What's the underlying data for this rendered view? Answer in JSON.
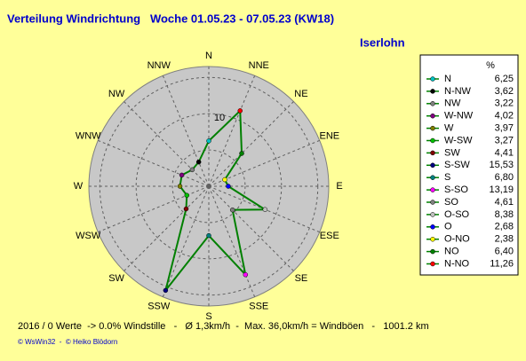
{
  "chart_data": {
    "type": "radar",
    "title": "Verteilung Windrichtung   Woche 01.05.23 - 07.05.23 (KW18)",
    "subtitle": "Iserlohn",
    "directions": [
      "N",
      "NNE",
      "NE",
      "ENE",
      "E",
      "ESE",
      "SE",
      "SSE",
      "S",
      "SSW",
      "SW",
      "WSW",
      "W",
      "WNW",
      "NW",
      "NNW"
    ],
    "legend_header": "%",
    "categories": [
      "N",
      "N-NW",
      "NW",
      "W-NW",
      "W",
      "W-SW",
      "SW",
      "S-SW",
      "S",
      "S-SO",
      "SO",
      "O-SO",
      "O",
      "O-NO",
      "NO",
      "N-NO"
    ],
    "values": [
      6.25,
      3.62,
      3.22,
      4.02,
      3.97,
      3.27,
      4.41,
      15.53,
      6.8,
      13.19,
      4.61,
      8.38,
      2.68,
      2.38,
      6.4,
      11.26
    ],
    "value_labels": [
      "6,25",
      "3,62",
      "3,22",
      "4,02",
      "3,97",
      "3,27",
      "4,41",
      "15,53",
      "6,80",
      "13,19",
      "4,61",
      "8,38",
      "2,68",
      "2,38",
      "6,40",
      "11,26"
    ],
    "colors": [
      "#00c0c0",
      "#000000",
      "#808080",
      "#800080",
      "#808000",
      "#00c000",
      "#800000",
      "#000080",
      "#008080",
      "#ff00ff",
      "#808080",
      "#c0c0c0",
      "#0000ff",
      "#ffff00",
      "#008000",
      "#ff0000"
    ],
    "line_color": "#008000",
    "rlim": [
      0,
      16.5
    ],
    "rticks": [
      10
    ],
    "rgrid": [
      5,
      10,
      15
    ],
    "footer": "2016 / 0 Werte  -> 0.0% Windstille   -   Ø 1,3km/h  -  Max. 36,0km/h = Windböen   -   1001.2 km",
    "credits": "© WsWin32  -  © Heiko Blödorn"
  }
}
